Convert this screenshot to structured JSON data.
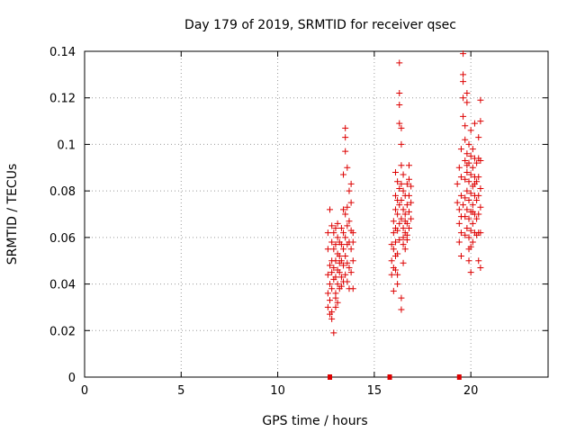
{
  "chart_data": {
    "type": "scatter",
    "title": "Day 179 of 2019, SRMTID for receiver qsec",
    "xlabel": "GPS time / hours",
    "ylabel": "SRMTID / TECUs",
    "xlim": [
      0,
      24
    ],
    "ylim": [
      0,
      0.14
    ],
    "xticks": [
      0,
      5,
      10,
      15,
      20
    ],
    "xtick_labels": [
      "0",
      "5",
      "10",
      "15",
      "20"
    ],
    "yticks": [
      0,
      0.02,
      0.04,
      0.06,
      0.08,
      0.1,
      0.12,
      0.14
    ],
    "ytick_labels": [
      "0",
      "0.02",
      "0.04",
      "0.06",
      "0.08",
      "0.1",
      "0.12",
      "0.14"
    ],
    "grid": true,
    "marker": "plus",
    "color": "#dd0000",
    "series": [
      {
        "points": [
          [
            12.6,
            0.062
          ],
          [
            12.6,
            0.055
          ],
          [
            12.7,
            0.072
          ],
          [
            12.7,
            0.048
          ],
          [
            12.7,
            0.04
          ],
          [
            12.6,
            0.036
          ],
          [
            12.7,
            0.033
          ],
          [
            12.6,
            0.03
          ],
          [
            12.8,
            0.065
          ],
          [
            12.8,
            0.058
          ],
          [
            12.8,
            0.05
          ],
          [
            12.8,
            0.045
          ],
          [
            12.8,
            0.038
          ],
          [
            12.8,
            0.028
          ],
          [
            12.8,
            0.025
          ],
          [
            12.9,
            0.019
          ],
          [
            12.9,
            0.062
          ],
          [
            12.9,
            0.055
          ],
          [
            12.9,
            0.047
          ],
          [
            13.0,
            0.064
          ],
          [
            13.0,
            0.057
          ],
          [
            13.0,
            0.05
          ],
          [
            13.0,
            0.043
          ],
          [
            13.0,
            0.036
          ],
          [
            13.0,
            0.03
          ],
          [
            13.1,
            0.066
          ],
          [
            13.1,
            0.06
          ],
          [
            13.1,
            0.053
          ],
          [
            13.1,
            0.046
          ],
          [
            13.1,
            0.04
          ],
          [
            13.2,
            0.058
          ],
          [
            13.2,
            0.052
          ],
          [
            13.2,
            0.045
          ],
          [
            13.2,
            0.038
          ],
          [
            13.3,
            0.064
          ],
          [
            13.3,
            0.057
          ],
          [
            13.3,
            0.05
          ],
          [
            13.3,
            0.043
          ],
          [
            13.4,
            0.072
          ],
          [
            13.4,
            0.062
          ],
          [
            13.4,
            0.055
          ],
          [
            13.4,
            0.048
          ],
          [
            13.4,
            0.041
          ],
          [
            13.4,
            0.087
          ],
          [
            13.5,
            0.097
          ],
          [
            13.5,
            0.107
          ],
          [
            13.5,
            0.103
          ],
          [
            13.5,
            0.07
          ],
          [
            13.5,
            0.06
          ],
          [
            13.5,
            0.052
          ],
          [
            13.6,
            0.09
          ],
          [
            13.6,
            0.073
          ],
          [
            13.6,
            0.065
          ],
          [
            13.6,
            0.057
          ],
          [
            13.6,
            0.049
          ],
          [
            13.7,
            0.08
          ],
          [
            13.7,
            0.067
          ],
          [
            13.7,
            0.058
          ],
          [
            13.7,
            0.047
          ],
          [
            13.7,
            0.038
          ],
          [
            13.8,
            0.083
          ],
          [
            13.8,
            0.075
          ],
          [
            13.8,
            0.063
          ],
          [
            13.8,
            0.055
          ],
          [
            13.8,
            0.045
          ],
          [
            13.9,
            0.062
          ],
          [
            13.9,
            0.05
          ],
          [
            13.9,
            0.038
          ],
          [
            12.7,
            0.027
          ],
          [
            13.0,
            0.034
          ],
          [
            13.2,
            0.049
          ],
          [
            13.3,
            0.039
          ],
          [
            13.5,
            0.044
          ],
          [
            13.6,
            0.041
          ],
          [
            13.9,
            0.058
          ],
          [
            12.6,
            0.044
          ],
          [
            12.9,
            0.042
          ],
          [
            13.1,
            0.032
          ],
          [
            15.9,
            0.057
          ],
          [
            15.9,
            0.05
          ],
          [
            15.9,
            0.044
          ],
          [
            16.0,
            0.062
          ],
          [
            16.0,
            0.055
          ],
          [
            16.0,
            0.037
          ],
          [
            16.0,
            0.067
          ],
          [
            16.1,
            0.088
          ],
          [
            16.1,
            0.078
          ],
          [
            16.1,
            0.072
          ],
          [
            16.1,
            0.064
          ],
          [
            16.1,
            0.058
          ],
          [
            16.1,
            0.052
          ],
          [
            16.2,
            0.084
          ],
          [
            16.2,
            0.076
          ],
          [
            16.2,
            0.07
          ],
          [
            16.2,
            0.063
          ],
          [
            16.2,
            0.044
          ],
          [
            16.2,
            0.04
          ],
          [
            16.3,
            0.135
          ],
          [
            16.3,
            0.122
          ],
          [
            16.3,
            0.117
          ],
          [
            16.3,
            0.109
          ],
          [
            16.3,
            0.081
          ],
          [
            16.3,
            0.074
          ],
          [
            16.3,
            0.066
          ],
          [
            16.4,
            0.107
          ],
          [
            16.4,
            0.1
          ],
          [
            16.4,
            0.091
          ],
          [
            16.4,
            0.083
          ],
          [
            16.4,
            0.076
          ],
          [
            16.4,
            0.068
          ],
          [
            16.4,
            0.034
          ],
          [
            16.4,
            0.029
          ],
          [
            16.5,
            0.087
          ],
          [
            16.5,
            0.08
          ],
          [
            16.5,
            0.072
          ],
          [
            16.5,
            0.064
          ],
          [
            16.5,
            0.057
          ],
          [
            16.5,
            0.049
          ],
          [
            16.6,
            0.078
          ],
          [
            16.6,
            0.07
          ],
          [
            16.6,
            0.062
          ],
          [
            16.6,
            0.055
          ],
          [
            16.7,
            0.083
          ],
          [
            16.7,
            0.074
          ],
          [
            16.7,
            0.066
          ],
          [
            16.7,
            0.059
          ],
          [
            16.8,
            0.091
          ],
          [
            16.8,
            0.085
          ],
          [
            16.8,
            0.078
          ],
          [
            16.8,
            0.071
          ],
          [
            16.8,
            0.064
          ],
          [
            16.9,
            0.082
          ],
          [
            16.9,
            0.075
          ],
          [
            16.9,
            0.068
          ],
          [
            16.3,
            0.059
          ],
          [
            16.5,
            0.06
          ],
          [
            16.6,
            0.067
          ],
          [
            16.0,
            0.047
          ],
          [
            16.2,
            0.053
          ],
          [
            16.7,
            0.061
          ],
          [
            16.1,
            0.046
          ],
          [
            19.3,
            0.083
          ],
          [
            19.3,
            0.075
          ],
          [
            19.4,
            0.09
          ],
          [
            19.4,
            0.072
          ],
          [
            19.4,
            0.066
          ],
          [
            19.4,
            0.058
          ],
          [
            19.5,
            0.098
          ],
          [
            19.5,
            0.086
          ],
          [
            19.5,
            0.078
          ],
          [
            19.5,
            0.062
          ],
          [
            19.5,
            0.052
          ],
          [
            19.6,
            0.139
          ],
          [
            19.6,
            0.13
          ],
          [
            19.6,
            0.127
          ],
          [
            19.6,
            0.12
          ],
          [
            19.6,
            0.112
          ],
          [
            19.7,
            0.108
          ],
          [
            19.7,
            0.102
          ],
          [
            19.7,
            0.093
          ],
          [
            19.7,
            0.085
          ],
          [
            19.7,
            0.077
          ],
          [
            19.7,
            0.069
          ],
          [
            19.7,
            0.061
          ],
          [
            19.8,
            0.122
          ],
          [
            19.8,
            0.118
          ],
          [
            19.8,
            0.096
          ],
          [
            19.8,
            0.088
          ],
          [
            19.8,
            0.08
          ],
          [
            19.8,
            0.072
          ],
          [
            19.8,
            0.064
          ],
          [
            19.9,
            0.1
          ],
          [
            19.9,
            0.092
          ],
          [
            19.9,
            0.084
          ],
          [
            19.9,
            0.076
          ],
          [
            19.9,
            0.068
          ],
          [
            19.9,
            0.06
          ],
          [
            19.9,
            0.05
          ],
          [
            20.0,
            0.106
          ],
          [
            20.0,
            0.095
          ],
          [
            20.0,
            0.087
          ],
          [
            20.0,
            0.079
          ],
          [
            20.0,
            0.071
          ],
          [
            20.0,
            0.063
          ],
          [
            20.0,
            0.056
          ],
          [
            20.0,
            0.045
          ],
          [
            20.1,
            0.098
          ],
          [
            20.1,
            0.09
          ],
          [
            20.1,
            0.082
          ],
          [
            20.1,
            0.074
          ],
          [
            20.1,
            0.066
          ],
          [
            20.1,
            0.058
          ],
          [
            20.2,
            0.109
          ],
          [
            20.2,
            0.094
          ],
          [
            20.2,
            0.086
          ],
          [
            20.2,
            0.078
          ],
          [
            20.2,
            0.07
          ],
          [
            20.2,
            0.062
          ],
          [
            20.3,
            0.092
          ],
          [
            20.3,
            0.084
          ],
          [
            20.3,
            0.076
          ],
          [
            20.3,
            0.068
          ],
          [
            20.4,
            0.103
          ],
          [
            20.4,
            0.094
          ],
          [
            20.4,
            0.086
          ],
          [
            20.4,
            0.078
          ],
          [
            20.4,
            0.07
          ],
          [
            20.4,
            0.062
          ],
          [
            20.4,
            0.05
          ],
          [
            20.5,
            0.119
          ],
          [
            20.5,
            0.11
          ],
          [
            20.5,
            0.093
          ],
          [
            20.5,
            0.081
          ],
          [
            20.5,
            0.073
          ],
          [
            20.5,
            0.062
          ],
          [
            20.5,
            0.047
          ],
          [
            19.6,
            0.074
          ],
          [
            19.9,
            0.055
          ],
          [
            20.2,
            0.083
          ],
          [
            20.3,
            0.061
          ],
          [
            19.5,
            0.069
          ],
          [
            20.1,
            0.071
          ],
          [
            19.8,
            0.091
          ]
        ]
      }
    ],
    "baseline_markers": [
      12.7,
      15.8,
      19.4
    ]
  }
}
